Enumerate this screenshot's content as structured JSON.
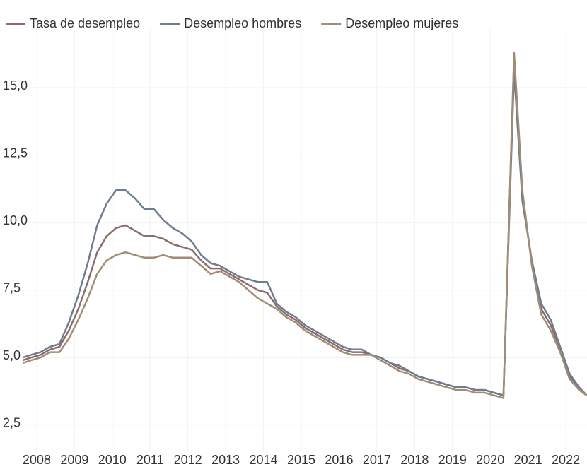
{
  "chart_data": {
    "type": "line",
    "x": [
      2007.63,
      2007.85,
      2008.1,
      2008.35,
      2008.6,
      2008.85,
      2009.1,
      2009.35,
      2009.6,
      2009.85,
      2010.1,
      2010.35,
      2010.6,
      2010.85,
      2011.1,
      2011.35,
      2011.6,
      2011.85,
      2012.1,
      2012.35,
      2012.6,
      2012.85,
      2013.1,
      2013.35,
      2013.6,
      2013.85,
      2014.1,
      2014.35,
      2014.6,
      2014.85,
      2015.1,
      2015.35,
      2015.6,
      2015.85,
      2016.1,
      2016.35,
      2016.6,
      2016.85,
      2017.1,
      2017.35,
      2017.6,
      2017.85,
      2018.1,
      2018.35,
      2018.6,
      2018.85,
      2019.1,
      2019.35,
      2019.6,
      2019.85,
      2020.1,
      2020.35,
      2020.63,
      2020.85,
      2021.1,
      2021.35,
      2021.6,
      2021.85,
      2022.1,
      2022.35,
      2022.55
    ],
    "series": [
      {
        "name": "Tasa de desempleo",
        "color": "#8e6b6d",
        "values": [
          4.9,
          5.0,
          5.1,
          5.3,
          5.4,
          6.0,
          6.8,
          7.8,
          8.9,
          9.5,
          9.8,
          9.9,
          9.7,
          9.5,
          9.5,
          9.4,
          9.2,
          9.1,
          9.0,
          8.6,
          8.3,
          8.3,
          8.1,
          7.9,
          7.7,
          7.5,
          7.4,
          6.9,
          6.6,
          6.4,
          6.1,
          5.9,
          5.7,
          5.5,
          5.3,
          5.2,
          5.2,
          5.1,
          5.0,
          4.8,
          4.6,
          4.5,
          4.3,
          4.2,
          4.1,
          4.0,
          3.9,
          3.9,
          3.8,
          3.8,
          3.7,
          3.6,
          16.1,
          11.0,
          8.5,
          6.8,
          6.2,
          5.3,
          4.3,
          3.9,
          3.6
        ]
      },
      {
        "name": "Desempleo hombres",
        "color": "#6d7c92",
        "values": [
          5.0,
          5.1,
          5.2,
          5.4,
          5.5,
          6.3,
          7.3,
          8.5,
          9.9,
          10.7,
          11.2,
          11.2,
          10.9,
          10.5,
          10.5,
          10.1,
          9.8,
          9.6,
          9.3,
          8.8,
          8.5,
          8.4,
          8.2,
          8.0,
          7.9,
          7.8,
          7.8,
          7.0,
          6.7,
          6.5,
          6.2,
          6.0,
          5.8,
          5.6,
          5.4,
          5.3,
          5.3,
          5.1,
          5.0,
          4.8,
          4.7,
          4.5,
          4.3,
          4.2,
          4.1,
          4.0,
          3.9,
          3.9,
          3.8,
          3.8,
          3.7,
          3.6,
          15.6,
          10.8,
          8.6,
          7.0,
          6.4,
          5.4,
          4.4,
          3.9,
          3.6
        ]
      },
      {
        "name": "Desempleo mujeres",
        "color": "#a08d73",
        "values": [
          4.8,
          4.9,
          5.0,
          5.2,
          5.2,
          5.7,
          6.4,
          7.2,
          8.1,
          8.6,
          8.8,
          8.9,
          8.8,
          8.7,
          8.7,
          8.8,
          8.7,
          8.7,
          8.7,
          8.4,
          8.1,
          8.2,
          8.0,
          7.8,
          7.5,
          7.2,
          7.0,
          6.8,
          6.5,
          6.3,
          6.0,
          5.8,
          5.6,
          5.4,
          5.2,
          5.1,
          5.1,
          5.1,
          4.9,
          4.7,
          4.5,
          4.4,
          4.2,
          4.1,
          4.0,
          3.9,
          3.8,
          3.8,
          3.7,
          3.7,
          3.6,
          3.5,
          16.3,
          11.2,
          8.4,
          6.6,
          6.0,
          5.2,
          4.2,
          3.8,
          3.6
        ]
      }
    ],
    "xlim": [
      2007.59,
      2022.56
    ],
    "xticks": [
      2008,
      2009,
      2010,
      2011,
      2012,
      2013,
      2014,
      2015,
      2016,
      2017,
      2018,
      2019,
      2020,
      2021,
      2022
    ],
    "ylim": [
      1.5,
      17.2
    ],
    "yticks": [
      {
        "value": 2.5,
        "label": "2,5"
      },
      {
        "value": 5,
        "label": "5,0"
      },
      {
        "value": 7.5,
        "label": "7,5"
      },
      {
        "value": 10,
        "label": "10,0"
      },
      {
        "value": 12.5,
        "label": "12,5"
      },
      {
        "value": 15,
        "label": "15,0"
      }
    ],
    "grid": true,
    "legend": "top"
  }
}
